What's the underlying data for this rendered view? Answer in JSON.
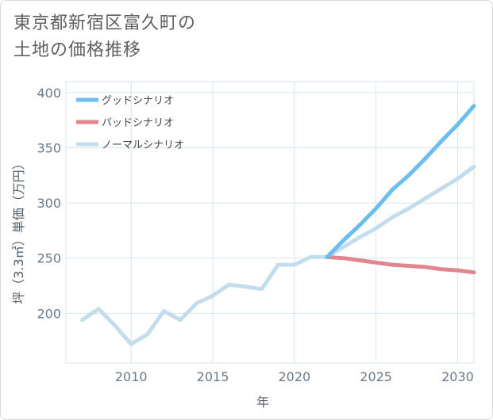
{
  "title_lines": [
    "東京都新宿区富久町の",
    "土地の価格推移"
  ],
  "chart_data": {
    "type": "line",
    "title": "東京都新宿区富久町の土地の価格推移",
    "xlabel": "年",
    "ylabel": "坪（3.3㎡）単価（万円）",
    "xlim": [
      2006,
      2031
    ],
    "ylim": [
      155,
      410
    ],
    "xticks": [
      2010,
      2015,
      2020,
      2025,
      2030
    ],
    "yticks": [
      200,
      250,
      300,
      350,
      400
    ],
    "grid": true,
    "legend_position": "top-left",
    "series": [
      {
        "name": "グッドシナリオ",
        "color": "#6cbdf0",
        "x": [
          2022,
          2023,
          2024,
          2025,
          2026,
          2027,
          2028,
          2029,
          2030,
          2031
        ],
        "values": [
          251,
          266,
          280,
          295,
          312,
          325,
          340,
          356,
          371,
          388
        ]
      },
      {
        "name": "バッドシナリオ",
        "color": "#e0868c",
        "x": [
          2022,
          2023,
          2024,
          2025,
          2026,
          2027,
          2028,
          2029,
          2030,
          2031
        ],
        "values": [
          251,
          250,
          248,
          246,
          244,
          243,
          242,
          240,
          239,
          237
        ]
      },
      {
        "name": "ノーマルシナリオ",
        "color": "#c3dded",
        "x": [
          2007,
          2008,
          2009,
          2010,
          2011,
          2012,
          2013,
          2014,
          2015,
          2016,
          2017,
          2018,
          2019,
          2020,
          2021,
          2022,
          2023,
          2024,
          2025,
          2026,
          2027,
          2028,
          2029,
          2030,
          2031
        ],
        "values": [
          194,
          204,
          189,
          172,
          181,
          202,
          194,
          209,
          216,
          226,
          224,
          222,
          244,
          244,
          251,
          251,
          260,
          269,
          277,
          287,
          295,
          304,
          313,
          322,
          333
        ]
      }
    ]
  }
}
